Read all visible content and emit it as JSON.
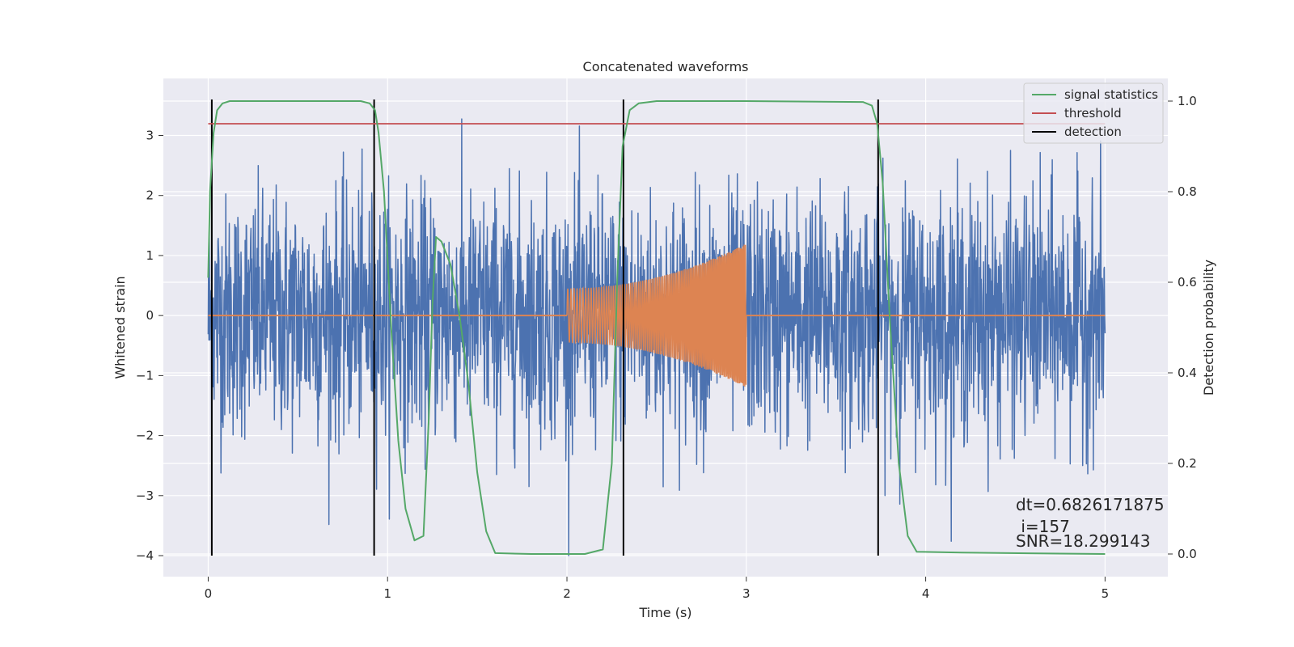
{
  "chart_data": {
    "type": "line",
    "title": "Concatenated waveforms",
    "xlabel": "Time (s)",
    "ylabel": "Whitened strain",
    "ylabel_right": "Detection probability",
    "xlim": [
      -0.25,
      5.35
    ],
    "ylim": [
      -4.35,
      3.95
    ],
    "ylim_right": [
      -0.05,
      1.05
    ],
    "xticks": [
      0,
      1,
      2,
      3,
      4,
      5
    ],
    "xtick_labels": [
      "0",
      "1",
      "2",
      "3",
      "4",
      "5"
    ],
    "yticks": [
      -4,
      -3,
      -2,
      -1,
      0,
      1,
      2,
      3
    ],
    "ytick_labels": [
      "−4",
      "−3",
      "−2",
      "−1",
      "0",
      "1",
      "2",
      "3"
    ],
    "yticks_right": [
      0.0,
      0.2,
      0.4,
      0.6,
      0.8,
      1.0
    ],
    "ytick_labels_right": [
      "0.0",
      "0.2",
      "0.4",
      "0.6",
      "0.8",
      "1.0"
    ],
    "grid": true,
    "legend_position": "top-right",
    "legend": [
      {
        "label": "signal statistics",
        "color": "#55a868"
      },
      {
        "label": "threshold",
        "color": "#c44e52"
      },
      {
        "label": "detection",
        "color": "#000000"
      }
    ],
    "series": [
      {
        "role": "strain",
        "color": "#4c72b0",
        "axis": "left",
        "x_range": [
          0,
          5
        ],
        "typical_amplitude": 1.0,
        "peak_range": [
          -4.0,
          3.6
        ]
      },
      {
        "role": "template",
        "color": "#dd8452",
        "axis": "left",
        "x_range": [
          2,
          3
        ],
        "amplitude_start": 0.45,
        "amplitude_end": 1.2
      },
      {
        "name": "signal statistics",
        "color": "#55a868",
        "axis": "right",
        "x": [
          0.0,
          0.01,
          0.03,
          0.05,
          0.08,
          0.12,
          0.2,
          0.5,
          0.85,
          0.9,
          0.93,
          0.95,
          0.98,
          1.02,
          1.06,
          1.1,
          1.15,
          1.2,
          1.23,
          1.25,
          1.27,
          1.3,
          1.35,
          1.4,
          1.45,
          1.5,
          1.55,
          1.6,
          1.8,
          2.1,
          2.2,
          2.25,
          2.28,
          2.31,
          2.35,
          2.4,
          2.5,
          3.0,
          3.65,
          3.7,
          3.73,
          3.76,
          3.8,
          3.85,
          3.9,
          3.95,
          4.2,
          5.0
        ],
        "y": [
          0.61,
          0.8,
          0.93,
          0.98,
          0.995,
          1.0,
          1.0,
          1.0,
          1.0,
          0.995,
          0.98,
          0.93,
          0.8,
          0.5,
          0.25,
          0.1,
          0.03,
          0.04,
          0.3,
          0.55,
          0.7,
          0.69,
          0.64,
          0.53,
          0.38,
          0.18,
          0.05,
          0.002,
          0.0,
          0.0,
          0.01,
          0.2,
          0.6,
          0.9,
          0.98,
          0.995,
          1.0,
          1.0,
          0.998,
          0.99,
          0.95,
          0.82,
          0.52,
          0.2,
          0.04,
          0.005,
          0.003,
          0.0
        ]
      },
      {
        "name": "threshold",
        "color": "#c44e52",
        "axis": "right",
        "x": [
          0,
          5
        ],
        "y": [
          0.95,
          0.95
        ]
      },
      {
        "name": "detection",
        "color": "#000000",
        "axis": "left",
        "type": "vlines",
        "x": [
          0.02,
          0.925,
          2.315,
          3.735
        ],
        "ymin": -4.0,
        "ymax": 3.6
      }
    ],
    "annotations": [
      {
        "text": "dt=0.6826171875",
        "x": 4.5,
        "y": -3.15
      },
      {
        "text": " i=157",
        "x": 4.5,
        "y": -3.52
      },
      {
        "text": "SNR=18.299143",
        "x": 4.5,
        "y": -3.76
      }
    ]
  }
}
